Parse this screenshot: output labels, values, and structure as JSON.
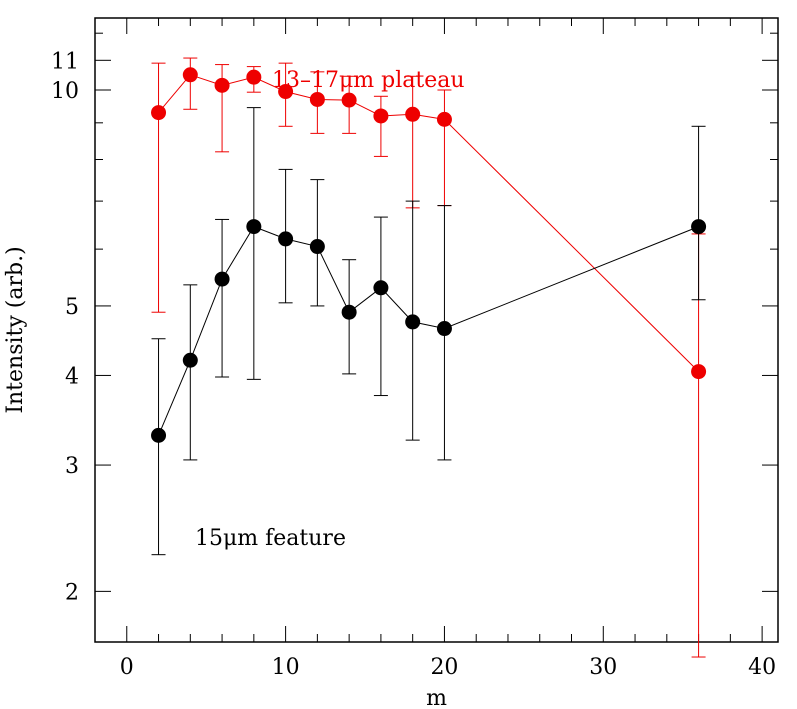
{
  "chart_data": {
    "type": "scatter",
    "title": "",
    "xlabel": "m",
    "ylabel": "Intensity  (arb.)",
    "xlim": [
      -2,
      41
    ],
    "ylim": [
      1.7,
      12.6
    ],
    "y_scale": "log",
    "x_ticks": [
      0,
      10,
      20,
      30,
      40
    ],
    "x_tick_labels": [
      "0",
      "10",
      "20",
      "30",
      "40"
    ],
    "y_ticks": [
      2,
      3,
      4,
      5,
      10,
      11
    ],
    "y_tick_labels": [
      "2",
      "3",
      "4",
      "5",
      "10",
      "11"
    ],
    "annotations": [
      {
        "text": "13–17μm  plateau",
        "color": "#ee0000",
        "series": "red"
      },
      {
        "text": "15μm  feature",
        "color": "#000000",
        "series": "black"
      }
    ],
    "series": [
      {
        "name": "13–17μm plateau",
        "color": "#ee0000",
        "x": [
          2,
          4,
          6,
          8,
          10,
          12,
          14,
          16,
          18,
          20,
          36
        ],
        "y": [
          9.3,
          10.5,
          10.15,
          10.42,
          9.95,
          9.7,
          9.68,
          9.2,
          9.25,
          9.1,
          4.05
        ],
        "y_err_low": [
          4.9,
          9.4,
          8.2,
          9.93,
          8.9,
          8.7,
          8.7,
          8.08,
          6.85,
          6.9,
          1.62
        ],
        "y_err_high": [
          10.9,
          11.08,
          10.85,
          10.78,
          10.9,
          10.6,
          10.45,
          9.8,
          10.45,
          10.0,
          6.3
        ]
      },
      {
        "name": "15μm feature",
        "color": "#000000",
        "x": [
          2,
          4,
          6,
          8,
          10,
          12,
          14,
          16,
          18,
          20,
          36
        ],
        "y": [
          3.3,
          4.2,
          5.45,
          6.45,
          6.2,
          6.05,
          4.9,
          5.3,
          4.75,
          4.65,
          6.45
        ],
        "y_err_low": [
          2.25,
          3.05,
          3.98,
          3.95,
          5.05,
          5.0,
          4.02,
          3.75,
          3.25,
          3.05,
          5.1
        ],
        "y_err_high": [
          4.5,
          5.35,
          6.6,
          9.45,
          7.75,
          7.5,
          5.8,
          6.65,
          7.0,
          6.9,
          8.9
        ]
      }
    ]
  }
}
